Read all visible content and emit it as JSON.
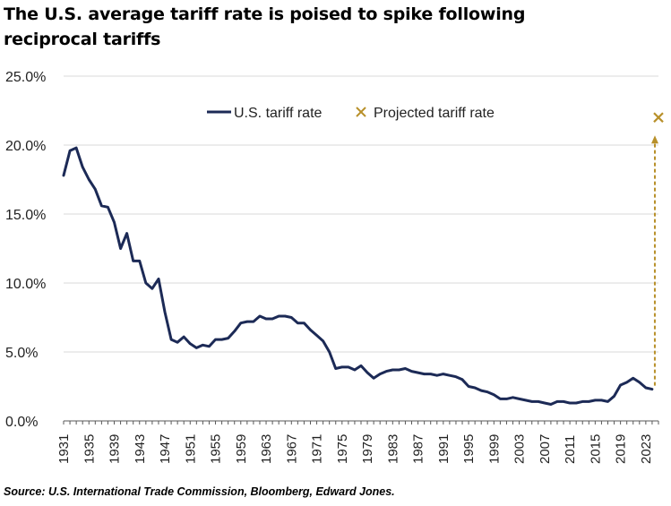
{
  "title": "The U.S. average tariff rate is poised to spike following reciprocal tariffs",
  "source": "Source: U.S. International Trade Commission, Bloomberg, Edward Jones.",
  "colors": {
    "series": "#1c2a56",
    "projected": "#b8902a",
    "grid": "#d9d9d9",
    "axis": "#595959"
  },
  "chart_data": {
    "type": "line",
    "title": "The U.S. average tariff rate is poised to spike following reciprocal tariffs",
    "ylim": [
      0,
      25
    ],
    "y_ticks": [
      "0.0%",
      "5.0%",
      "10.0%",
      "15.0%",
      "20.0%",
      "25.0%"
    ],
    "y_tick_values": [
      0,
      5,
      10,
      15,
      20,
      25
    ],
    "x_ticks": [
      "1931",
      "1935",
      "1939",
      "1943",
      "1947",
      "1951",
      "1955",
      "1959",
      "1963",
      "1967",
      "1971",
      "1975",
      "1979",
      "1983",
      "1987",
      "1991",
      "1995",
      "1999",
      "2003",
      "2007",
      "2011",
      "2015",
      "2019",
      "2023"
    ],
    "xlim": [
      1931,
      2025
    ],
    "grid": "horizontal",
    "legend_placement": "top-center",
    "series": [
      {
        "name": "U.S. tariff rate",
        "x": [
          1931,
          1932,
          1933,
          1934,
          1935,
          1936,
          1937,
          1938,
          1939,
          1940,
          1941,
          1942,
          1943,
          1944,
          1945,
          1946,
          1947,
          1948,
          1949,
          1950,
          1951,
          1952,
          1953,
          1954,
          1955,
          1956,
          1957,
          1958,
          1959,
          1960,
          1961,
          1962,
          1963,
          1964,
          1965,
          1966,
          1967,
          1968,
          1969,
          1970,
          1971,
          1972,
          1973,
          1974,
          1975,
          1976,
          1977,
          1978,
          1979,
          1980,
          1981,
          1982,
          1983,
          1984,
          1985,
          1986,
          1987,
          1988,
          1989,
          1990,
          1991,
          1992,
          1993,
          1994,
          1995,
          1996,
          1997,
          1998,
          1999,
          2000,
          2001,
          2002,
          2003,
          2004,
          2005,
          2006,
          2007,
          2008,
          2009,
          2010,
          2011,
          2012,
          2013,
          2014,
          2015,
          2016,
          2017,
          2018,
          2019,
          2020,
          2021,
          2022,
          2023,
          2024
        ],
        "values": [
          17.8,
          19.6,
          19.8,
          18.4,
          17.5,
          16.8,
          15.6,
          15.5,
          14.4,
          12.5,
          13.6,
          11.6,
          11.6,
          10.0,
          9.6,
          10.3,
          7.9,
          5.9,
          5.7,
          6.1,
          5.6,
          5.3,
          5.5,
          5.4,
          5.9,
          5.9,
          6.0,
          6.5,
          7.1,
          7.2,
          7.2,
          7.6,
          7.4,
          7.4,
          7.6,
          7.6,
          7.5,
          7.1,
          7.1,
          6.6,
          6.2,
          5.8,
          5.0,
          3.8,
          3.9,
          3.9,
          3.7,
          4.0,
          3.5,
          3.1,
          3.4,
          3.6,
          3.7,
          3.7,
          3.8,
          3.6,
          3.5,
          3.4,
          3.4,
          3.3,
          3.4,
          3.3,
          3.2,
          3.0,
          2.5,
          2.4,
          2.2,
          2.1,
          1.9,
          1.6,
          1.6,
          1.7,
          1.6,
          1.5,
          1.4,
          1.4,
          1.3,
          1.2,
          1.4,
          1.4,
          1.3,
          1.3,
          1.4,
          1.4,
          1.5,
          1.5,
          1.4,
          1.8,
          2.6,
          2.8,
          3.1,
          2.8,
          2.4,
          2.3
        ]
      },
      {
        "name": "Projected tariff rate",
        "x": [
          2025
        ],
        "values": [
          22.0
        ]
      }
    ]
  }
}
